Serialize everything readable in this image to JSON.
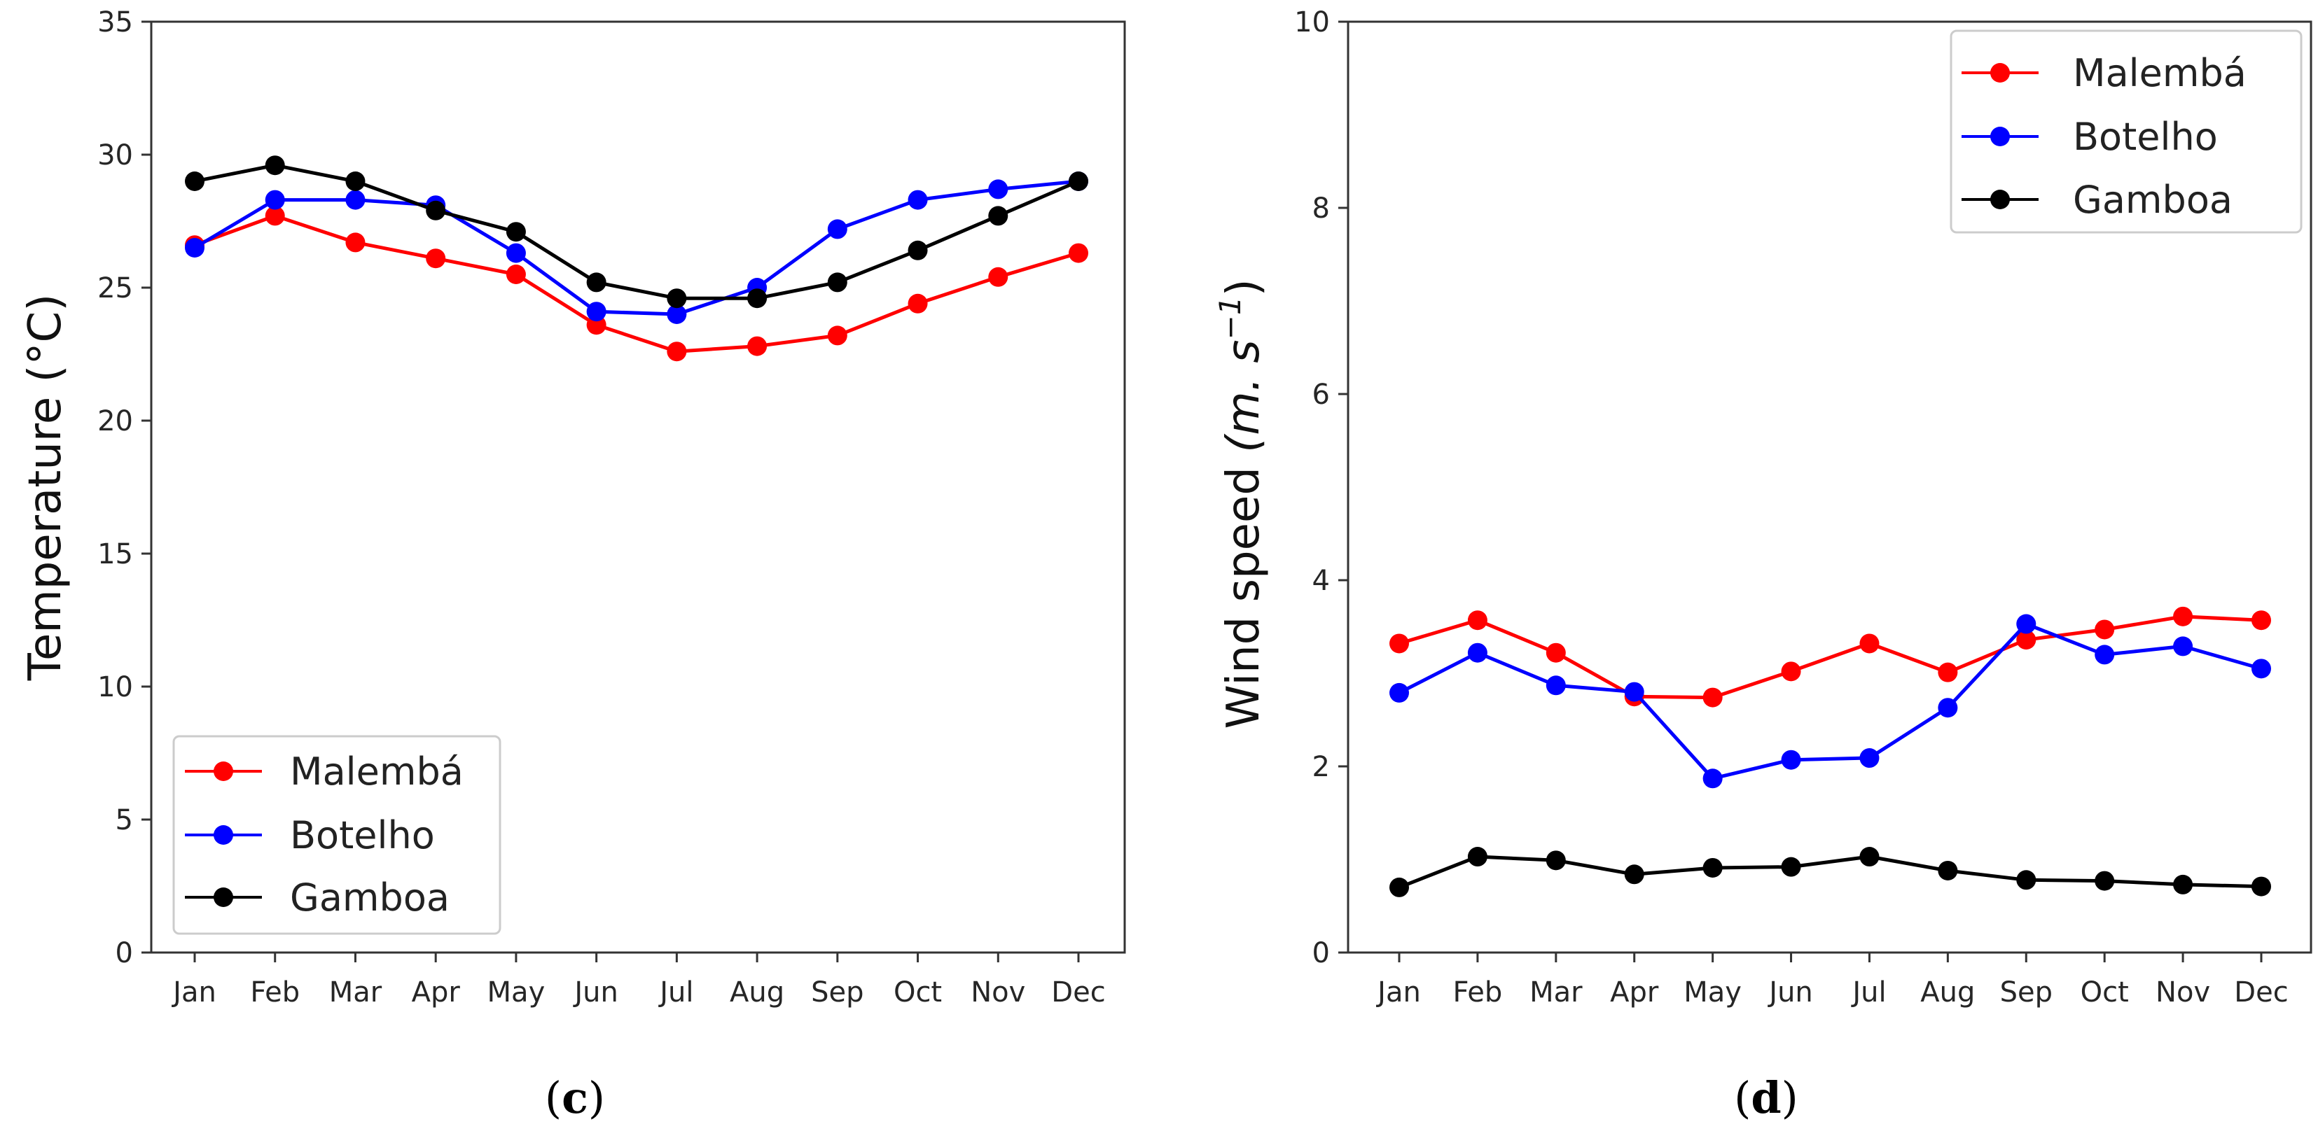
{
  "chart_data": [
    {
      "type": "line",
      "panel_label": "c",
      "caption_open": "(",
      "caption_close": ")",
      "title": "",
      "xlabel": "",
      "ylabel": "Temperature (°C)",
      "categories": [
        "Jan",
        "Feb",
        "Mar",
        "Apr",
        "May",
        "Jun",
        "Jul",
        "Aug",
        "Sep",
        "Oct",
        "Nov",
        "Dec"
      ],
      "ylim": [
        0,
        35
      ],
      "yticks": [
        0,
        5,
        10,
        15,
        20,
        25,
        30,
        35
      ],
      "legend_position": "lower-left",
      "series": [
        {
          "name": "Malembá",
          "color": "#ff0000",
          "values": [
            26.6,
            27.7,
            26.7,
            26.1,
            25.5,
            23.6,
            22.6,
            22.8,
            23.2,
            24.4,
            25.4,
            26.3
          ]
        },
        {
          "name": "Botelho",
          "color": "#0000ff",
          "values": [
            26.5,
            28.3,
            28.3,
            28.1,
            26.3,
            24.1,
            24.0,
            25.0,
            27.2,
            28.3,
            28.7,
            29.0
          ]
        },
        {
          "name": "Gamboa",
          "color": "#000000",
          "values": [
            29.0,
            29.6,
            29.0,
            27.9,
            27.1,
            25.2,
            24.6,
            24.6,
            25.2,
            26.4,
            27.7,
            29.0
          ]
        }
      ]
    },
    {
      "type": "line",
      "panel_label": "d",
      "caption_open": "(",
      "caption_close": ")",
      "title": "",
      "xlabel": "",
      "ylabel_main": "Wind speed ",
      "ylabel_unit": "(m. s",
      "ylabel_sup": "−1",
      "ylabel_close": ")",
      "categories": [
        "Jan",
        "Feb",
        "Mar",
        "Apr",
        "May",
        "Jun",
        "Jul",
        "Aug",
        "Sep",
        "Oct",
        "Nov",
        "Dec"
      ],
      "ylim": [
        0,
        10
      ],
      "yticks": [
        0,
        2,
        4,
        6,
        8,
        10
      ],
      "legend_position": "upper-right",
      "series": [
        {
          "name": "Malembá",
          "color": "#ff0000",
          "values": [
            3.32,
            3.57,
            3.22,
            2.75,
            2.74,
            3.02,
            3.32,
            3.01,
            3.36,
            3.47,
            3.61,
            3.57
          ]
        },
        {
          "name": "Botelho",
          "color": "#0000ff",
          "values": [
            2.79,
            3.22,
            2.87,
            2.8,
            1.87,
            2.07,
            2.09,
            2.63,
            3.53,
            3.2,
            3.29,
            3.05
          ]
        },
        {
          "name": "Gamboa",
          "color": "#000000",
          "values": [
            0.7,
            1.03,
            0.99,
            0.84,
            0.91,
            0.92,
            1.03,
            0.88,
            0.78,
            0.77,
            0.73,
            0.71
          ]
        }
      ]
    }
  ]
}
